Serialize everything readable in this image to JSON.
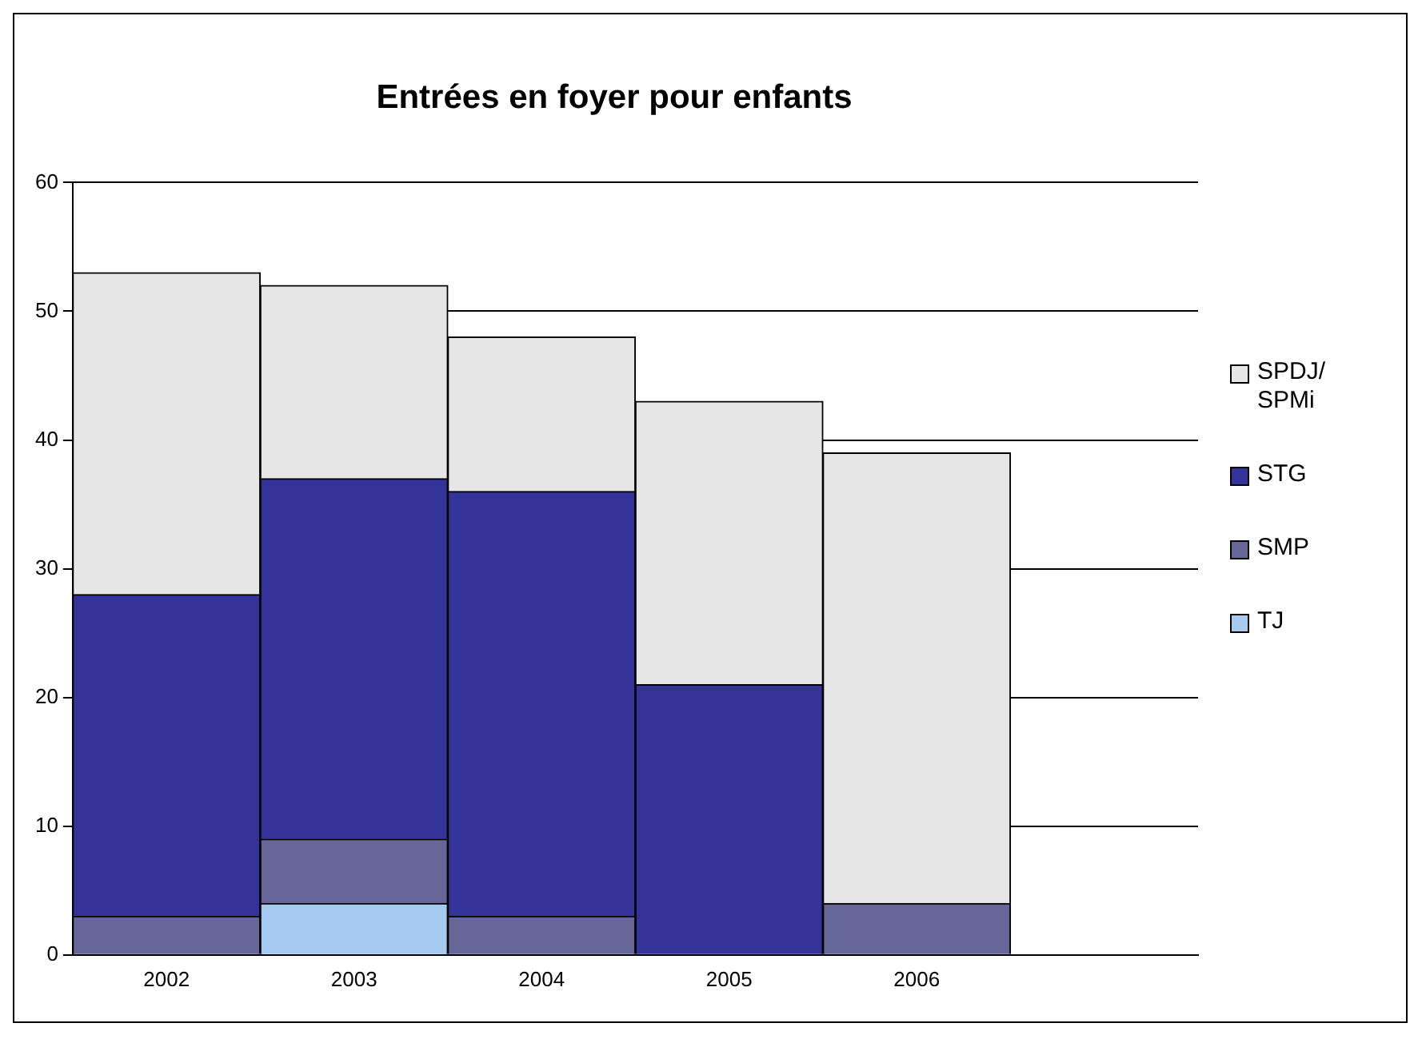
{
  "chart_data": {
    "type": "bar",
    "title": "Entrées en foyer pour enfants",
    "stacked": true,
    "categories": [
      "2002",
      "2003",
      "2004",
      "2005",
      "2006",
      null
    ],
    "series": [
      {
        "name": "TJ",
        "color": "#a6caf0",
        "values": [
          0,
          4,
          0,
          0,
          0,
          null
        ]
      },
      {
        "name": "SMP",
        "color": "#666699",
        "values": [
          3,
          5,
          3,
          0,
          4,
          null
        ]
      },
      {
        "name": "STG",
        "color": "#333399",
        "values": [
          25,
          28,
          33,
          21,
          0,
          null
        ]
      },
      {
        "name": "SPDJ/SPMi",
        "color": "#e6e6e6",
        "values": [
          25,
          15,
          12,
          22,
          35,
          null
        ]
      }
    ],
    "ylim": [
      0,
      60
    ],
    "yticks": [
      0,
      10,
      20,
      30,
      40,
      50,
      60
    ],
    "grid": "y",
    "legend": "right"
  }
}
